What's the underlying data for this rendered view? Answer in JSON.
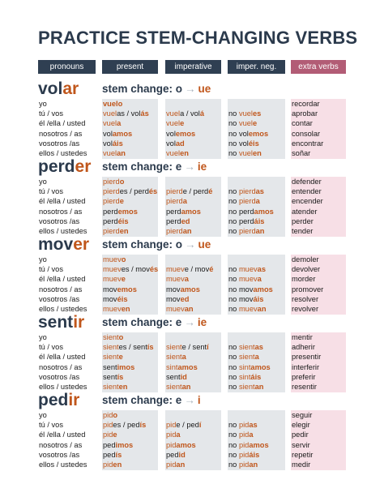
{
  "title": "PRACTICE STEM-CHANGING VERBS",
  "headers": [
    "pronouns",
    "present",
    "imperative",
    "imper. neg.",
    "extra verbs"
  ],
  "colors": {
    "navy": "#2f3f52",
    "orange": "#c0561b",
    "pink": "#b25c75",
    "gray_bg": "#e4e7ea",
    "pink_bg": "#f7dfe6"
  },
  "pronouns": [
    "yo",
    "tú / vos",
    "él /ella / usted",
    "nosotros / as",
    "vosotros /as",
    "ellos / ustedes"
  ],
  "verbs": [
    {
      "stem": "vol",
      "ending": "ar",
      "change_label": "stem change:",
      "change_from": "o",
      "change_to": "ue",
      "present": [
        [
          {
            "t": "vuelo",
            "c": "hl"
          }
        ],
        [
          {
            "t": "vuel",
            "c": "s1"
          },
          {
            "t": "as / vol",
            "c": "s2"
          },
          {
            "t": "ás",
            "c": "hl"
          }
        ],
        [
          {
            "t": "vuel",
            "c": "s1"
          },
          {
            "t": "a",
            "c": "hl"
          }
        ],
        [
          {
            "t": "vol",
            "c": "s2"
          },
          {
            "t": "amos",
            "c": "hl"
          }
        ],
        [
          {
            "t": "vol",
            "c": "s2"
          },
          {
            "t": "áis",
            "c": "hl"
          }
        ],
        [
          {
            "t": "vuel",
            "c": "s1"
          },
          {
            "t": "an",
            "c": "hl"
          }
        ]
      ],
      "imperative": [
        [],
        [
          {
            "t": "vuel",
            "c": "s1"
          },
          {
            "t": "a / vol",
            "c": "s2"
          },
          {
            "t": "á",
            "c": "hl"
          }
        ],
        [
          {
            "t": "vuel",
            "c": "s1"
          },
          {
            "t": "e",
            "c": "hl"
          }
        ],
        [
          {
            "t": "vol",
            "c": "s2"
          },
          {
            "t": "emos",
            "c": "hl"
          }
        ],
        [
          {
            "t": "vol",
            "c": "s2"
          },
          {
            "t": "ad",
            "c": "hl"
          }
        ],
        [
          {
            "t": "vuel",
            "c": "s1"
          },
          {
            "t": "en",
            "c": "hl"
          }
        ]
      ],
      "negative": [
        [],
        [
          {
            "t": "no ",
            "c": "s2"
          },
          {
            "t": "vuel",
            "c": "s1"
          },
          {
            "t": "es",
            "c": "hl"
          }
        ],
        [
          {
            "t": "no ",
            "c": "s2"
          },
          {
            "t": "vuel",
            "c": "s1"
          },
          {
            "t": "e",
            "c": "hl"
          }
        ],
        [
          {
            "t": "no ",
            "c": "s2"
          },
          {
            "t": "vol",
            "c": "s2"
          },
          {
            "t": "emos",
            "c": "hl"
          }
        ],
        [
          {
            "t": "no ",
            "c": "s2"
          },
          {
            "t": "vol",
            "c": "s2"
          },
          {
            "t": "éis",
            "c": "hl"
          }
        ],
        [
          {
            "t": "no ",
            "c": "s2"
          },
          {
            "t": "vuel",
            "c": "s1"
          },
          {
            "t": "en",
            "c": "hl"
          }
        ]
      ],
      "extra": [
        "recordar",
        "aprobar",
        "contar",
        "consolar",
        "encontrar",
        "soñar"
      ]
    },
    {
      "stem": "perd",
      "ending": "er",
      "change_label": "stem change:",
      "change_from": "e",
      "change_to": "ie",
      "present": [
        [
          {
            "t": "pierd",
            "c": "s1"
          },
          {
            "t": "o",
            "c": "hl"
          }
        ],
        [
          {
            "t": "pierd",
            "c": "s1"
          },
          {
            "t": "es / perd",
            "c": "s2"
          },
          {
            "t": "és",
            "c": "hl"
          }
        ],
        [
          {
            "t": "pierd",
            "c": "s1"
          },
          {
            "t": "e",
            "c": "hl"
          }
        ],
        [
          {
            "t": "perd",
            "c": "s2"
          },
          {
            "t": "emos",
            "c": "hl"
          }
        ],
        [
          {
            "t": "perd",
            "c": "s2"
          },
          {
            "t": "éis",
            "c": "hl"
          }
        ],
        [
          {
            "t": "pierd",
            "c": "s1"
          },
          {
            "t": "en",
            "c": "hl"
          }
        ]
      ],
      "imperative": [
        [],
        [
          {
            "t": "pierd",
            "c": "s1"
          },
          {
            "t": "e / perd",
            "c": "s2"
          },
          {
            "t": "é",
            "c": "hl"
          }
        ],
        [
          {
            "t": "pierd",
            "c": "s1"
          },
          {
            "t": "a",
            "c": "hl"
          }
        ],
        [
          {
            "t": "perd",
            "c": "s2"
          },
          {
            "t": "amos",
            "c": "hl"
          }
        ],
        [
          {
            "t": "perd",
            "c": "s2"
          },
          {
            "t": "ed",
            "c": "hl"
          }
        ],
        [
          {
            "t": "pierd",
            "c": "s1"
          },
          {
            "t": "an",
            "c": "hl"
          }
        ]
      ],
      "negative": [
        [],
        [
          {
            "t": "no ",
            "c": "s2"
          },
          {
            "t": "pierd",
            "c": "s1"
          },
          {
            "t": "as",
            "c": "hl"
          }
        ],
        [
          {
            "t": "no ",
            "c": "s2"
          },
          {
            "t": "pierd",
            "c": "s1"
          },
          {
            "t": "a",
            "c": "hl"
          }
        ],
        [
          {
            "t": "no ",
            "c": "s2"
          },
          {
            "t": "perd",
            "c": "s2"
          },
          {
            "t": "amos",
            "c": "hl"
          }
        ],
        [
          {
            "t": "no ",
            "c": "s2"
          },
          {
            "t": "perd",
            "c": "s2"
          },
          {
            "t": "áis",
            "c": "hl"
          }
        ],
        [
          {
            "t": "no ",
            "c": "s2"
          },
          {
            "t": "pierd",
            "c": "s1"
          },
          {
            "t": "an",
            "c": "hl"
          }
        ]
      ],
      "extra": [
        "defender",
        "entender",
        "encender",
        "atender",
        "perder",
        "tender"
      ]
    },
    {
      "stem": "mov",
      "ending": "er",
      "change_label": "stem change:",
      "change_from": "o",
      "change_to": "ue",
      "present": [
        [
          {
            "t": "muev",
            "c": "s1"
          },
          {
            "t": "o",
            "c": "hl"
          }
        ],
        [
          {
            "t": "muev",
            "c": "s1"
          },
          {
            "t": "es / mov",
            "c": "s2"
          },
          {
            "t": "és",
            "c": "hl"
          }
        ],
        [
          {
            "t": "muev",
            "c": "s1"
          },
          {
            "t": "e",
            "c": "hl"
          }
        ],
        [
          {
            "t": "mov",
            "c": "s2"
          },
          {
            "t": "emos",
            "c": "hl"
          }
        ],
        [
          {
            "t": "mov",
            "c": "s2"
          },
          {
            "t": "éis",
            "c": "hl"
          }
        ],
        [
          {
            "t": "muev",
            "c": "s1"
          },
          {
            "t": "en",
            "c": "hl"
          }
        ]
      ],
      "imperative": [
        [],
        [
          {
            "t": "muev",
            "c": "s1"
          },
          {
            "t": "e / mov",
            "c": "s2"
          },
          {
            "t": "é",
            "c": "hl"
          }
        ],
        [
          {
            "t": "muev",
            "c": "s1"
          },
          {
            "t": "a",
            "c": "hl"
          }
        ],
        [
          {
            "t": "mov",
            "c": "s2"
          },
          {
            "t": "amos",
            "c": "hl"
          }
        ],
        [
          {
            "t": "mov",
            "c": "s2"
          },
          {
            "t": "ed",
            "c": "hl"
          }
        ],
        [
          {
            "t": "muev",
            "c": "s1"
          },
          {
            "t": "an",
            "c": "hl"
          }
        ]
      ],
      "negative": [
        [],
        [
          {
            "t": "no ",
            "c": "s2"
          },
          {
            "t": "muev",
            "c": "s1"
          },
          {
            "t": "as",
            "c": "hl"
          }
        ],
        [
          {
            "t": "no ",
            "c": "s2"
          },
          {
            "t": "muev",
            "c": "s1"
          },
          {
            "t": "a",
            "c": "hl"
          }
        ],
        [
          {
            "t": "no ",
            "c": "s2"
          },
          {
            "t": "mov",
            "c": "s2"
          },
          {
            "t": "amos",
            "c": "hl"
          }
        ],
        [
          {
            "t": "no ",
            "c": "s2"
          },
          {
            "t": "mov",
            "c": "s2"
          },
          {
            "t": "áis",
            "c": "hl"
          }
        ],
        [
          {
            "t": "no ",
            "c": "s2"
          },
          {
            "t": "muev",
            "c": "s1"
          },
          {
            "t": "an",
            "c": "hl"
          }
        ]
      ],
      "extra": [
        "demoler",
        "devolver",
        "morder",
        "promover",
        "resolver",
        "revolver"
      ]
    },
    {
      "stem": "sent",
      "ending": "ir",
      "change_label": "stem change:",
      "change_from": "e",
      "change_to": "ie",
      "present": [
        [
          {
            "t": "sient",
            "c": "s1"
          },
          {
            "t": "o",
            "c": "hl"
          }
        ],
        [
          {
            "t": "sient",
            "c": "s1"
          },
          {
            "t": "es / sent",
            "c": "s2"
          },
          {
            "t": "ís",
            "c": "hl"
          }
        ],
        [
          {
            "t": "sient",
            "c": "s1"
          },
          {
            "t": "e",
            "c": "hl"
          }
        ],
        [
          {
            "t": "sent",
            "c": "s2"
          },
          {
            "t": "imos",
            "c": "hl"
          }
        ],
        [
          {
            "t": "sent",
            "c": "s2"
          },
          {
            "t": "ís",
            "c": "hl"
          }
        ],
        [
          {
            "t": "sient",
            "c": "s1"
          },
          {
            "t": "en",
            "c": "hl"
          }
        ]
      ],
      "imperative": [
        [],
        [
          {
            "t": "sient",
            "c": "s1"
          },
          {
            "t": "e / sent",
            "c": "s2"
          },
          {
            "t": "í",
            "c": "hl"
          }
        ],
        [
          {
            "t": "sient",
            "c": "s1"
          },
          {
            "t": "a",
            "c": "hl"
          }
        ],
        [
          {
            "t": "sint",
            "c": "s1"
          },
          {
            "t": "amos",
            "c": "hl"
          }
        ],
        [
          {
            "t": "sent",
            "c": "s2"
          },
          {
            "t": "id",
            "c": "hl"
          }
        ],
        [
          {
            "t": "sient",
            "c": "s1"
          },
          {
            "t": "an",
            "c": "hl"
          }
        ]
      ],
      "negative": [
        [],
        [
          {
            "t": "no ",
            "c": "s2"
          },
          {
            "t": "sient",
            "c": "s1"
          },
          {
            "t": "as",
            "c": "hl"
          }
        ],
        [
          {
            "t": "no ",
            "c": "s2"
          },
          {
            "t": "sient",
            "c": "s1"
          },
          {
            "t": "a",
            "c": "hl"
          }
        ],
        [
          {
            "t": "no ",
            "c": "s2"
          },
          {
            "t": "sint",
            "c": "s1"
          },
          {
            "t": "amos",
            "c": "hl"
          }
        ],
        [
          {
            "t": "no ",
            "c": "s2"
          },
          {
            "t": "sint",
            "c": "s1"
          },
          {
            "t": "áis",
            "c": "hl"
          }
        ],
        [
          {
            "t": "no ",
            "c": "s2"
          },
          {
            "t": "sient",
            "c": "s1"
          },
          {
            "t": "an",
            "c": "hl"
          }
        ]
      ],
      "extra": [
        "mentir",
        "adherir",
        "presentir",
        "interferir",
        "preferir",
        "resentir"
      ]
    },
    {
      "stem": "ped",
      "ending": "ir",
      "change_label": "stem change:",
      "change_from": "e",
      "change_to": "i",
      "present": [
        [
          {
            "t": "pid",
            "c": "s1"
          },
          {
            "t": "o",
            "c": "hl"
          }
        ],
        [
          {
            "t": "pid",
            "c": "s1"
          },
          {
            "t": "es / ped",
            "c": "s2"
          },
          {
            "t": "ís",
            "c": "hl"
          }
        ],
        [
          {
            "t": "pid",
            "c": "s1"
          },
          {
            "t": "e",
            "c": "hl"
          }
        ],
        [
          {
            "t": "ped",
            "c": "s2"
          },
          {
            "t": "imos",
            "c": "hl"
          }
        ],
        [
          {
            "t": "ped",
            "c": "s2"
          },
          {
            "t": "ís",
            "c": "hl"
          }
        ],
        [
          {
            "t": "pid",
            "c": "s1"
          },
          {
            "t": "en",
            "c": "hl"
          }
        ]
      ],
      "imperative": [
        [],
        [
          {
            "t": "pid",
            "c": "s1"
          },
          {
            "t": "e / ped",
            "c": "s2"
          },
          {
            "t": "í",
            "c": "hl"
          }
        ],
        [
          {
            "t": "pid",
            "c": "s1"
          },
          {
            "t": "a",
            "c": "hl"
          }
        ],
        [
          {
            "t": "pid",
            "c": "s1"
          },
          {
            "t": "amos",
            "c": "hl"
          }
        ],
        [
          {
            "t": "ped",
            "c": "s2"
          },
          {
            "t": "id",
            "c": "hl"
          }
        ],
        [
          {
            "t": "pid",
            "c": "s1"
          },
          {
            "t": "an",
            "c": "hl"
          }
        ]
      ],
      "negative": [
        [],
        [
          {
            "t": "no ",
            "c": "s2"
          },
          {
            "t": "pid",
            "c": "s1"
          },
          {
            "t": "as",
            "c": "hl"
          }
        ],
        [
          {
            "t": "no ",
            "c": "s2"
          },
          {
            "t": "pid",
            "c": "s1"
          },
          {
            "t": "a",
            "c": "hl"
          }
        ],
        [
          {
            "t": "no ",
            "c": "s2"
          },
          {
            "t": "pid",
            "c": "s1"
          },
          {
            "t": "amos",
            "c": "hl"
          }
        ],
        [
          {
            "t": "no ",
            "c": "s2"
          },
          {
            "t": "pid",
            "c": "s1"
          },
          {
            "t": "áis",
            "c": "hl"
          }
        ],
        [
          {
            "t": "no ",
            "c": "s2"
          },
          {
            "t": "pid",
            "c": "s1"
          },
          {
            "t": "an",
            "c": "hl"
          }
        ]
      ],
      "extra": [
        "seguir",
        "elegir",
        "pedir",
        "servir",
        "repetir",
        "medir"
      ]
    }
  ]
}
